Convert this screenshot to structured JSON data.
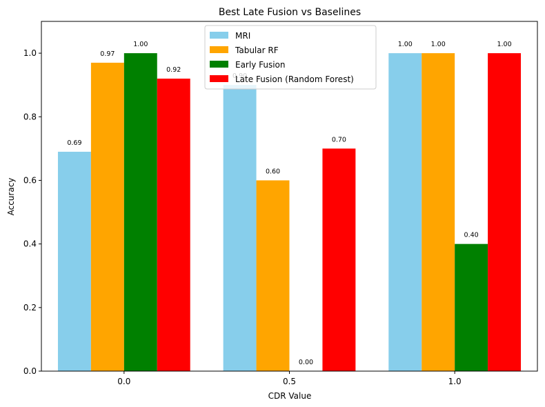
{
  "chart_data": {
    "type": "bar",
    "title": "Best Late Fusion vs Baselines",
    "xlabel": "CDR Value",
    "ylabel": "Accuracy",
    "categories": [
      "0.0",
      "0.5",
      "1.0"
    ],
    "ylim": [
      0,
      1.1
    ],
    "yticks": [
      "0.0",
      "0.2",
      "0.4",
      "0.6",
      "0.8",
      "1.0"
    ],
    "grid": false,
    "legend_position": "top-center",
    "series": [
      {
        "name": "MRI",
        "color": "#87CEEB",
        "values": [
          0.69,
          0.9,
          1.0
        ],
        "labels": [
          "0.69",
          "0.90",
          "1.00"
        ]
      },
      {
        "name": "Tabular RF",
        "color": "#FFA500",
        "values": [
          0.97,
          0.6,
          1.0
        ],
        "labels": [
          "0.97",
          "0.60",
          "1.00"
        ]
      },
      {
        "name": "Early Fusion",
        "color": "#008000",
        "values": [
          1.0,
          0.0,
          0.4
        ],
        "labels": [
          "1.00",
          "0.00",
          "0.40"
        ]
      },
      {
        "name": "Late Fusion (Random Forest)",
        "color": "#FF0000",
        "values": [
          0.92,
          0.7,
          1.0
        ],
        "labels": [
          "0.92",
          "0.70",
          "1.00"
        ]
      }
    ]
  }
}
